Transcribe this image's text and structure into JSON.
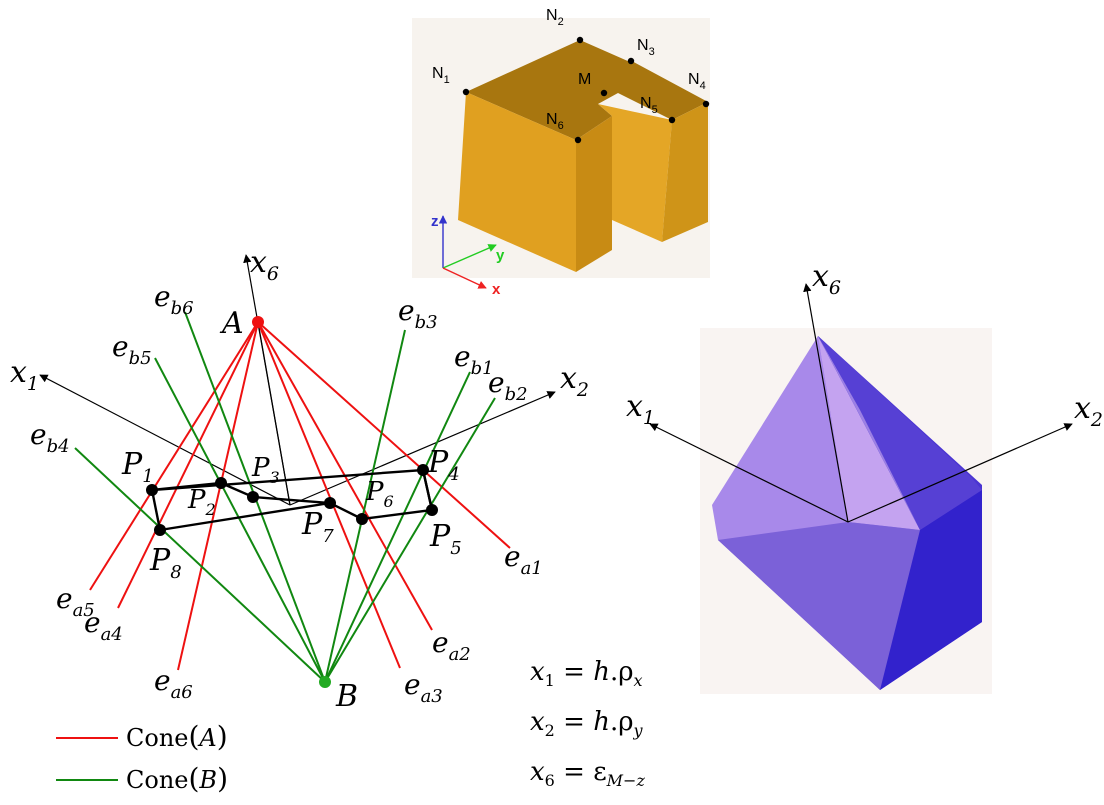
{
  "block_figure": {
    "nodes": {
      "n1": {
        "base": "N",
        "sub": "1"
      },
      "n2": {
        "base": "N",
        "sub": "2"
      },
      "n3": {
        "base": "N",
        "sub": "3"
      },
      "n4": {
        "base": "N",
        "sub": "4"
      },
      "n5": {
        "base": "N",
        "sub": "5"
      },
      "n6": {
        "base": "N",
        "sub": "6"
      },
      "m": "M"
    },
    "axes": {
      "z": "z",
      "y": "y",
      "x": "x"
    }
  },
  "cone_figure": {
    "axis_x6": {
      "base": "x",
      "sub": "6"
    },
    "axis_x1": {
      "base": "x",
      "sub": "1"
    },
    "axis_x2": {
      "base": "x",
      "sub": "2"
    },
    "apex_a": "A",
    "apex_b": "B",
    "points": {
      "p1": {
        "base": "P",
        "sub": "1"
      },
      "p2": {
        "base": "P",
        "sub": "2"
      },
      "p3": {
        "base": "P",
        "sub": "3"
      },
      "p4": {
        "base": "P",
        "sub": "4"
      },
      "p5": {
        "base": "P",
        "sub": "5"
      },
      "p6": {
        "base": "P",
        "sub": "6"
      },
      "p7": {
        "base": "P",
        "sub": "7"
      },
      "p8": {
        "base": "P",
        "sub": "8"
      }
    },
    "edges_a": {
      "ea1": {
        "base": "e",
        "sub": "a1"
      },
      "ea2": {
        "base": "e",
        "sub": "a2"
      },
      "ea3": {
        "base": "e",
        "sub": "a3"
      },
      "ea4": {
        "base": "e",
        "sub": "a4"
      },
      "ea5": {
        "base": "e",
        "sub": "a5"
      },
      "ea6": {
        "base": "e",
        "sub": "a6"
      }
    },
    "edges_b": {
      "eb1": {
        "base": "e",
        "sub": "b1"
      },
      "eb2": {
        "base": "e",
        "sub": "b2"
      },
      "eb3": {
        "base": "e",
        "sub": "b3"
      },
      "eb4": {
        "base": "e",
        "sub": "b4"
      },
      "eb5": {
        "base": "e",
        "sub": "b5"
      },
      "eb6": {
        "base": "e",
        "sub": "b6"
      }
    },
    "colors": {
      "cone_a": "#ee1111",
      "cone_b": "#118811"
    }
  },
  "legend": {
    "cone_a": {
      "name": "Cone",
      "arg": "A"
    },
    "cone_b": {
      "name": "Cone",
      "arg": "B"
    }
  },
  "equations": {
    "eq1": {
      "lhs_base": "x",
      "lhs_sub": "1",
      "eq": " = ",
      "coef": "h",
      "dot": ".",
      "rho": "ρ",
      "rho_sub": "x"
    },
    "eq2": {
      "lhs_base": "x",
      "lhs_sub": "2",
      "eq": " = ",
      "coef": "h",
      "dot": ".",
      "rho": "ρ",
      "rho_sub": "y"
    },
    "eq3": {
      "lhs_base": "x",
      "lhs_sub": "6",
      "eq": " = ",
      "eps": "ε",
      "eps_sub": "M−z"
    }
  },
  "polytope_figure": {
    "axis_x6": {
      "base": "x",
      "sub": "6"
    },
    "axis_x1": {
      "base": "x",
      "sub": "1"
    },
    "axis_x2": {
      "base": "x",
      "sub": "2"
    },
    "colors": {
      "face_light": "#c9a8ee",
      "face_mid": "#9b7ee6",
      "face_dark": "#6a4fd6",
      "face_deep": "#3a2ad0"
    }
  }
}
